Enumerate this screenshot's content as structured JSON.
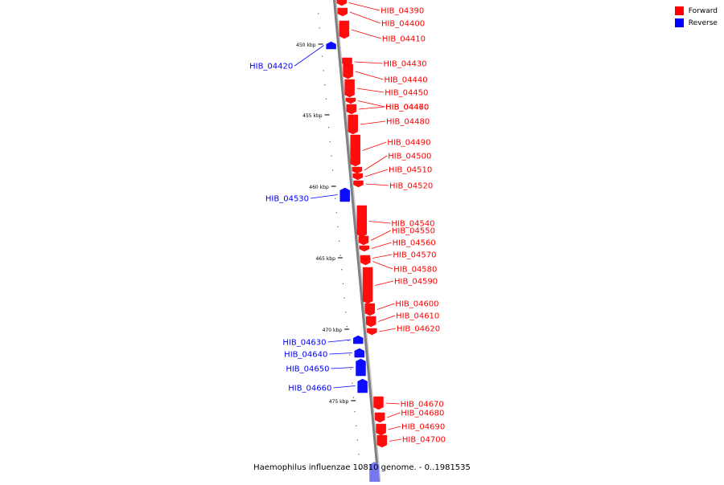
{
  "legend": {
    "forward": {
      "label": "Forward",
      "color": "#ff0000"
    },
    "reverse": {
      "label": "Reverse",
      "color": "#0000ff"
    }
  },
  "caption": "Haemophilus influenzae 10810 genome. - 0..1981535",
  "ticks": [
    {
      "kbp": 450,
      "label": "450 kbp"
    },
    {
      "kbp": 455,
      "label": "455 kbp"
    },
    {
      "kbp": 460,
      "label": "460 kbp"
    },
    {
      "kbp": 465,
      "label": "465 kbp"
    },
    {
      "kbp": 470,
      "label": "470 kbp"
    },
    {
      "kbp": 475,
      "label": "475 kbp"
    }
  ],
  "genes": [
    {
      "name": "HIB_04390",
      "strand": "+"
    },
    {
      "name": "HIB_04400",
      "strand": "+"
    },
    {
      "name": "HIB_04410",
      "strand": "+"
    },
    {
      "name": "HIB_04420",
      "strand": "-"
    },
    {
      "name": "HIB_04430",
      "strand": "+"
    },
    {
      "name": "HIB_04440",
      "strand": "+"
    },
    {
      "name": "HIB_04450",
      "strand": "+"
    },
    {
      "name": "HIB_04460",
      "strand": "+"
    },
    {
      "name": "HIB_04470",
      "strand": "+"
    },
    {
      "name": "HIB_04480",
      "strand": "+"
    },
    {
      "name": "HIB_04490",
      "strand": "+"
    },
    {
      "name": "HIB_04500",
      "strand": "+"
    },
    {
      "name": "HIB_04510",
      "strand": "+"
    },
    {
      "name": "HIB_04520",
      "strand": "+"
    },
    {
      "name": "HIB_04530",
      "strand": "-"
    },
    {
      "name": "HIB_04540",
      "strand": "+"
    },
    {
      "name": "HIB_04550",
      "strand": "+"
    },
    {
      "name": "HIB_04560",
      "strand": "+"
    },
    {
      "name": "HIB_04570",
      "strand": "+"
    },
    {
      "name": "HIB_04580",
      "strand": "+"
    },
    {
      "name": "HIB_04590",
      "strand": "+"
    },
    {
      "name": "HIB_04600",
      "strand": "+"
    },
    {
      "name": "HIB_04610",
      "strand": "+"
    },
    {
      "name": "HIB_04620",
      "strand": "+"
    },
    {
      "name": "HIB_04630",
      "strand": "-"
    },
    {
      "name": "HIB_04640",
      "strand": "-"
    },
    {
      "name": "HIB_04650",
      "strand": "-"
    },
    {
      "name": "HIB_04660",
      "strand": "-"
    },
    {
      "name": "HIB_04670",
      "strand": "+"
    },
    {
      "name": "HIB_04680",
      "strand": "+"
    },
    {
      "name": "HIB_04690",
      "strand": "+"
    },
    {
      "name": "HIB_04700",
      "strand": "+"
    }
  ]
}
